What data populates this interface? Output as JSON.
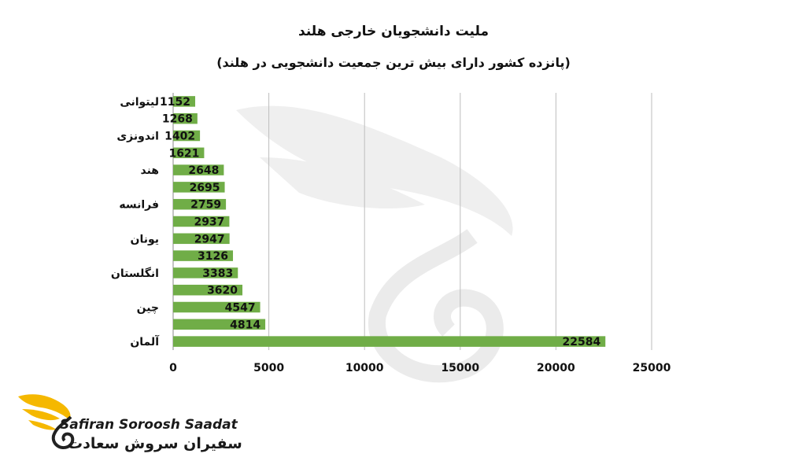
{
  "chart_data": {
    "type": "bar",
    "orientation": "horizontal",
    "title": "ملیت دانشجویان خارجی هلند",
    "subtitle": "(پانزده کشور دارای بیش ترین جمعیت دانشجویی در هلند)",
    "categories": [
      "لیتوانی",
      "",
      "اندونزی",
      "",
      "هند",
      "",
      "فرانسه",
      "",
      "یونان",
      "",
      "انگلستان",
      "",
      "چین",
      "",
      "آلمان"
    ],
    "values": [
      1152,
      1268,
      1402,
      1621,
      2648,
      2695,
      2759,
      2937,
      2947,
      3126,
      3383,
      3620,
      4547,
      4814,
      22584
    ],
    "value_labels": [
      "1152",
      "1268",
      "1402",
      "1621",
      "2648",
      "2695",
      "2759",
      "2937",
      "2947",
      "3126",
      "3383",
      "3620",
      "4547",
      "4814",
      "22584"
    ],
    "xlim": [
      0,
      25000
    ],
    "xticks": [
      0,
      5000,
      10000,
      15000,
      20000,
      25000
    ],
    "xtick_labels": [
      "0",
      "5000",
      "10000",
      "15000",
      "20000",
      "25000"
    ],
    "bar_color": "#70ad47",
    "grid": true,
    "legend": "none"
  },
  "watermark": {
    "icon": "bird-swirl-watermark-icon",
    "color": "#e8e8e8"
  },
  "branding": {
    "logo_icon": "golden-bird-swirl-logo-icon",
    "name_en": "Safiran Soroosh Saadat",
    "name_fa": "سفیران سروش سعادت",
    "logo_color": "#f5b800"
  }
}
